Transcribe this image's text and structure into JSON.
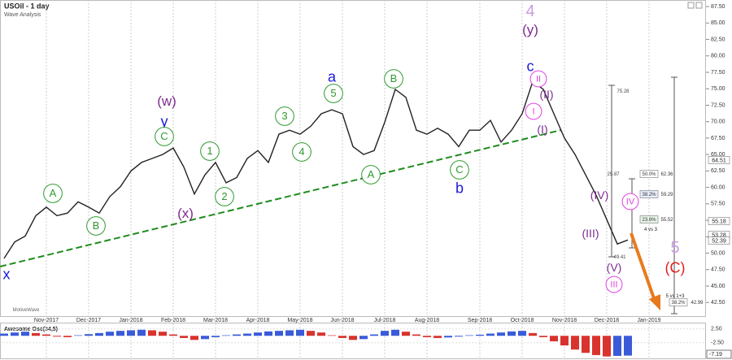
{
  "chart_data": [
    {
      "type": "line",
      "title": "USOil - 1 day",
      "subtitle": "Wave Analysis",
      "color": "#222222",
      "categories": [
        null,
        null,
        null,
        null,
        "Nov-2017",
        null,
        null,
        null,
        "Dec-2017",
        null,
        null,
        null,
        "Jan-2018",
        null,
        null,
        null,
        "Feb-2018",
        null,
        null,
        null,
        "Mar-2018",
        null,
        null,
        null,
        "Apr-2018",
        null,
        null,
        null,
        "May-2018",
        null,
        null,
        null,
        "Jun-2018",
        null,
        null,
        null,
        "Jul-2018",
        null,
        null,
        null,
        "Aug-2018",
        null,
        null,
        null,
        null,
        "Sep-2018",
        null,
        null,
        null,
        "Oct-2018",
        null,
        null,
        null,
        "Nov-2018",
        null,
        null,
        null,
        "Dec-2018",
        null,
        null,
        null,
        "Jan-2019"
      ],
      "values": [
        49.2,
        51.7,
        52.6,
        55.7,
        57,
        55.7,
        56.1,
        57.8,
        57,
        56.1,
        58.6,
        60.1,
        62.5,
        63.8,
        64.4,
        65,
        66,
        63.1,
        59,
        61.9,
        63.8,
        60.7,
        61.5,
        64.4,
        65.6,
        63.8,
        68.1,
        68.7,
        68.1,
        69.3,
        71.2,
        71.8,
        71.2,
        66.2,
        65,
        65.6,
        69.9,
        74.9,
        73.7,
        68.7,
        68.1,
        69,
        68.1,
        66.2,
        68.7,
        68.7,
        70.2,
        66.9,
        68.7,
        71.2,
        76.1,
        74.9,
        71.2,
        67.5,
        65,
        61.9,
        58.8,
        55.1,
        51.4,
        52.0,
        null,
        null
      ],
      "ylim": [
        40.3,
        88.5
      ],
      "yticks": [
        {
          "value": 87.5,
          "label": "87.50"
        },
        {
          "value": 85,
          "label": "85.00"
        },
        {
          "value": 82.5,
          "label": "82.50"
        },
        {
          "value": 80,
          "label": "80.00"
        },
        {
          "value": 77.5,
          "label": "77.50"
        },
        {
          "value": 75,
          "label": "75.00"
        },
        {
          "value": 72.5,
          "label": "72.50"
        },
        {
          "value": 70,
          "label": "70.00"
        },
        {
          "value": 67.5,
          "label": "67.50"
        },
        {
          "value": 65,
          "label": "65.00"
        },
        {
          "value": 62.5,
          "label": "62.50"
        },
        {
          "value": 60,
          "label": "60.00"
        },
        {
          "value": 57.5,
          "label": "57.50"
        },
        {
          "value": 55,
          "label": "55.00"
        },
        {
          "value": 52.5,
          "label": "52.50"
        },
        {
          "value": 50,
          "label": "50.00"
        },
        {
          "value": 47.5,
          "label": "47.50"
        },
        {
          "value": 45,
          "label": "45.00"
        },
        {
          "value": 42.5,
          "label": "42.50"
        }
      ],
      "trendline_color": "#1e8c1e",
      "forecast_color": "#e87a1e",
      "annotations": [
        {
          "text": "x",
          "color": "#1a1adb"
        },
        {
          "text": "A",
          "color": "#2e9a2e",
          "circled": true
        },
        {
          "text": "B",
          "color": "#2e9a2e",
          "circled": true
        },
        {
          "text": "(w)",
          "color": "#7b2d8e"
        },
        {
          "text": "y",
          "color": "#1a1adb"
        },
        {
          "text": "C",
          "color": "#2e9a2e",
          "circled": true
        },
        {
          "text": "(x)",
          "color": "#7b2d8e"
        },
        {
          "text": "1",
          "color": "#2e9a2e",
          "circled": true
        },
        {
          "text": "2",
          "color": "#2e9a2e",
          "circled": true
        },
        {
          "text": "3",
          "color": "#2e9a2e",
          "circled": true
        },
        {
          "text": "4",
          "color": "#2e9a2e",
          "circled": true
        },
        {
          "text": "a",
          "color": "#1a1adb"
        },
        {
          "text": "5",
          "color": "#2e9a2e",
          "circled": true
        },
        {
          "text": "A",
          "color": "#2e9a2e",
          "circled": true
        },
        {
          "text": "B",
          "color": "#2e9a2e",
          "circled": true
        },
        {
          "text": "C",
          "color": "#2e9a2e",
          "circled": true
        },
        {
          "text": "b",
          "color": "#1a1adb"
        },
        {
          "text": "4",
          "color": "#c99be0"
        },
        {
          "text": "(y)",
          "color": "#7b2d8e"
        },
        {
          "text": "c",
          "color": "#1a1adb"
        },
        {
          "text": "II",
          "color": "#e040e0",
          "circled": true
        },
        {
          "text": "(II)",
          "color": "#7b2d8e"
        },
        {
          "text": "I",
          "color": "#e040e0",
          "circled": true
        },
        {
          "text": "(I)",
          "color": "#7b2d8e"
        },
        {
          "text": "(IV)",
          "color": "#7b2d8e"
        },
        {
          "text": "IV",
          "color": "#e040e0",
          "circled": true
        },
        {
          "text": "(III)",
          "color": "#7b2d8e"
        },
        {
          "text": "(V)",
          "color": "#7b2d8e"
        },
        {
          "text": "III",
          "color": "#e040e0",
          "circled": true
        },
        {
          "text": "5",
          "color": "#c99be0"
        },
        {
          "text": "(C)",
          "color": "#e0201e"
        },
        {
          "text": "75.28",
          "color": "#444444"
        },
        {
          "text": "25.87",
          "color": "#444444"
        },
        {
          "text": "50.0%",
          "color": "#333333"
        },
        {
          "text": "62.36",
          "color": "#333333"
        },
        {
          "text": "38.2%",
          "color": "#333333"
        },
        {
          "text": "59.29",
          "color": "#333333"
        },
        {
          "text": "23.6%",
          "color": "#333333"
        },
        {
          "text": "55.52",
          "color": "#333333"
        },
        {
          "text": "4 vs 3",
          "color": "#222222"
        },
        {
          "text": "49.41",
          "color": "#444444"
        },
        {
          "text": "5 vs 1+3",
          "color": "#222222"
        },
        {
          "text": "38.2%",
          "color": "#333333"
        },
        {
          "text": "42.99",
          "color": "#333333"
        },
        {
          "text": "MotiveWave",
          "color": "#666666"
        },
        {
          "text": "64.51",
          "color": "#222222"
        },
        {
          "text": "55.18",
          "color": "#222222"
        },
        {
          "text": "53.28",
          "color": "#222222"
        },
        {
          "text": "52.39",
          "color": "#222222"
        }
      ]
    },
    {
      "type": "bar",
      "title": "Awesome Osc(34,5)",
      "up_color": "#3a5bd9",
      "down_color": "#d9332e",
      "values": [
        0.8,
        1.2,
        1.5,
        1.0,
        0.5,
        -0.3,
        -0.5,
        0.2,
        0.6,
        1.0,
        1.5,
        1.8,
        2.0,
        2.2,
        2.0,
        1.5,
        0.5,
        -0.8,
        -1.5,
        -1.2,
        -0.5,
        0.2,
        0.5,
        0.8,
        1.2,
        1.6,
        1.8,
        2.0,
        2.2,
        1.8,
        1.2,
        0.2,
        -0.8,
        -1.5,
        -1.2,
        0.5,
        1.8,
        2.2,
        1.5,
        0.5,
        -0.5,
        -0.8,
        -0.6,
        -0.3,
        0.2,
        0.4,
        0.8,
        1.2,
        1.6,
        1.8,
        1.0,
        -0.5,
        -2.0,
        -3.5,
        -5.0,
        -6.2,
        -7.0,
        -7.5,
        -7.3,
        -7.19,
        null,
        null
      ],
      "ylim": [
        -8.5,
        4.5
      ],
      "yticks": [
        {
          "value": 2.5,
          "label": "2.50"
        },
        {
          "value": -2.5,
          "label": "-2.50"
        }
      ],
      "last_label": "-7.19"
    }
  ]
}
